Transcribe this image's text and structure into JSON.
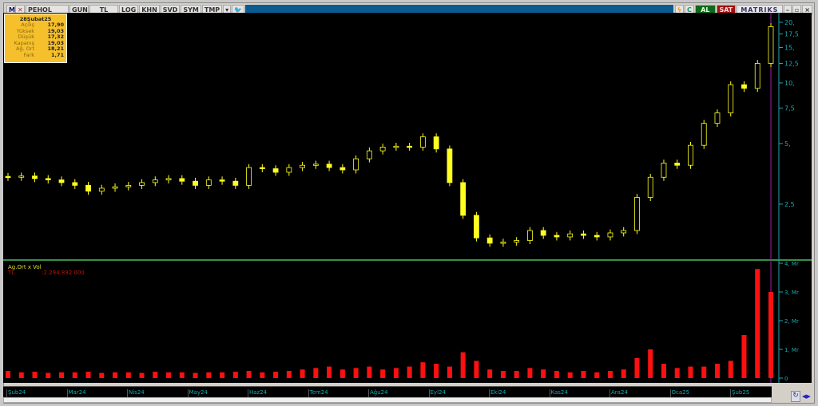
{
  "toolbar": {
    "symbol": "PEHOL",
    "period": "GUN",
    "currency": "TL",
    "log": "LOG",
    "khn": "KHN",
    "svd": "SVD",
    "sym": "SYM",
    "tmp": "TMP",
    "buy": "AL",
    "sell": "SAT",
    "brand": "MATRIKS"
  },
  "info": {
    "date": "28Şubat25",
    "rows": [
      {
        "label": "Açılış",
        "value": "17,90"
      },
      {
        "label": "Yüksek",
        "value": "19,03"
      },
      {
        "label": "Düşük",
        "value": "17,32"
      },
      {
        "label": "Kapanış",
        "value": "19,03"
      },
      {
        "label": "Ağ. Ort",
        "value": "18,21"
      },
      {
        "label": "Fark",
        "value": "1,71"
      }
    ]
  },
  "volume_panel": {
    "title": "Ag.Ort x Vol",
    "unit": "TL",
    "value": ":2.294.892.000"
  },
  "colors": {
    "candle": "#ffff20",
    "volume": "#ff1010",
    "axis": "#1aa8b0",
    "separator": "#4ac060",
    "cursor": "#a020a0"
  },
  "chart_data": [
    {
      "type": "candlestick",
      "scale": "log",
      "ylim": [
        1.32,
        21.9
      ],
      "yticks": [
        {
          "v": 2.5,
          "label": "2,5"
        },
        {
          "v": 5,
          "label": "5,"
        },
        {
          "v": 7.5,
          "label": "7,5"
        },
        {
          "v": 10,
          "label": "10,"
        },
        {
          "v": 12.5,
          "label": "12,5"
        },
        {
          "v": 15,
          "label": "15,"
        },
        {
          "v": 17.5,
          "label": "17,5"
        },
        {
          "v": 20,
          "label": "20,"
        }
      ],
      "xticks": [
        "Şub24",
        "Mar24",
        "Nis24",
        "May24",
        "Haz24",
        "Tem24",
        "Ağu24",
        "Eyl24",
        "Eki24",
        "Kas24",
        "Ara24",
        "Oca25",
        "Şub25"
      ],
      "close": [
        3.4,
        3.45,
        3.35,
        3.3,
        3.2,
        3.1,
        2.9,
        3.0,
        3.05,
        3.1,
        3.2,
        3.3,
        3.35,
        3.25,
        3.1,
        3.3,
        3.25,
        3.1,
        3.8,
        3.75,
        3.6,
        3.8,
        3.9,
        3.95,
        3.8,
        3.7,
        4.2,
        4.6,
        4.8,
        4.85,
        4.8,
        5.4,
        4.7,
        3.2,
        2.2,
        1.7,
        1.6,
        1.62,
        1.65,
        1.85,
        1.75,
        1.72,
        1.78,
        1.75,
        1.72,
        1.8,
        1.85,
        2.7,
        3.4,
        4.0,
        3.9,
        4.9,
        6.3,
        7.1,
        9.8,
        9.4,
        12.5,
        19.03
      ]
    },
    {
      "type": "bar",
      "ylabel": "Mr",
      "ylim": [
        0,
        4
      ],
      "yticks": [
        {
          "v": 0,
          "label": "0"
        },
        {
          "v": 1,
          "label": "1, Mr"
        },
        {
          "v": 2,
          "label": "2, Mr"
        },
        {
          "v": 3,
          "label": "3, Mr"
        },
        {
          "v": 4,
          "label": "4, Mr"
        }
      ],
      "values": [
        0.25,
        0.2,
        0.22,
        0.18,
        0.2,
        0.2,
        0.22,
        0.18,
        0.2,
        0.2,
        0.18,
        0.22,
        0.2,
        0.2,
        0.18,
        0.2,
        0.2,
        0.22,
        0.25,
        0.2,
        0.22,
        0.25,
        0.3,
        0.35,
        0.4,
        0.3,
        0.35,
        0.4,
        0.3,
        0.35,
        0.4,
        0.55,
        0.5,
        0.4,
        0.9,
        0.6,
        0.3,
        0.25,
        0.25,
        0.35,
        0.3,
        0.25,
        0.2,
        0.25,
        0.2,
        0.25,
        0.3,
        0.7,
        1.0,
        0.5,
        0.35,
        0.4,
        0.4,
        0.5,
        0.6,
        1.5,
        3.8,
        3.0
      ]
    }
  ]
}
